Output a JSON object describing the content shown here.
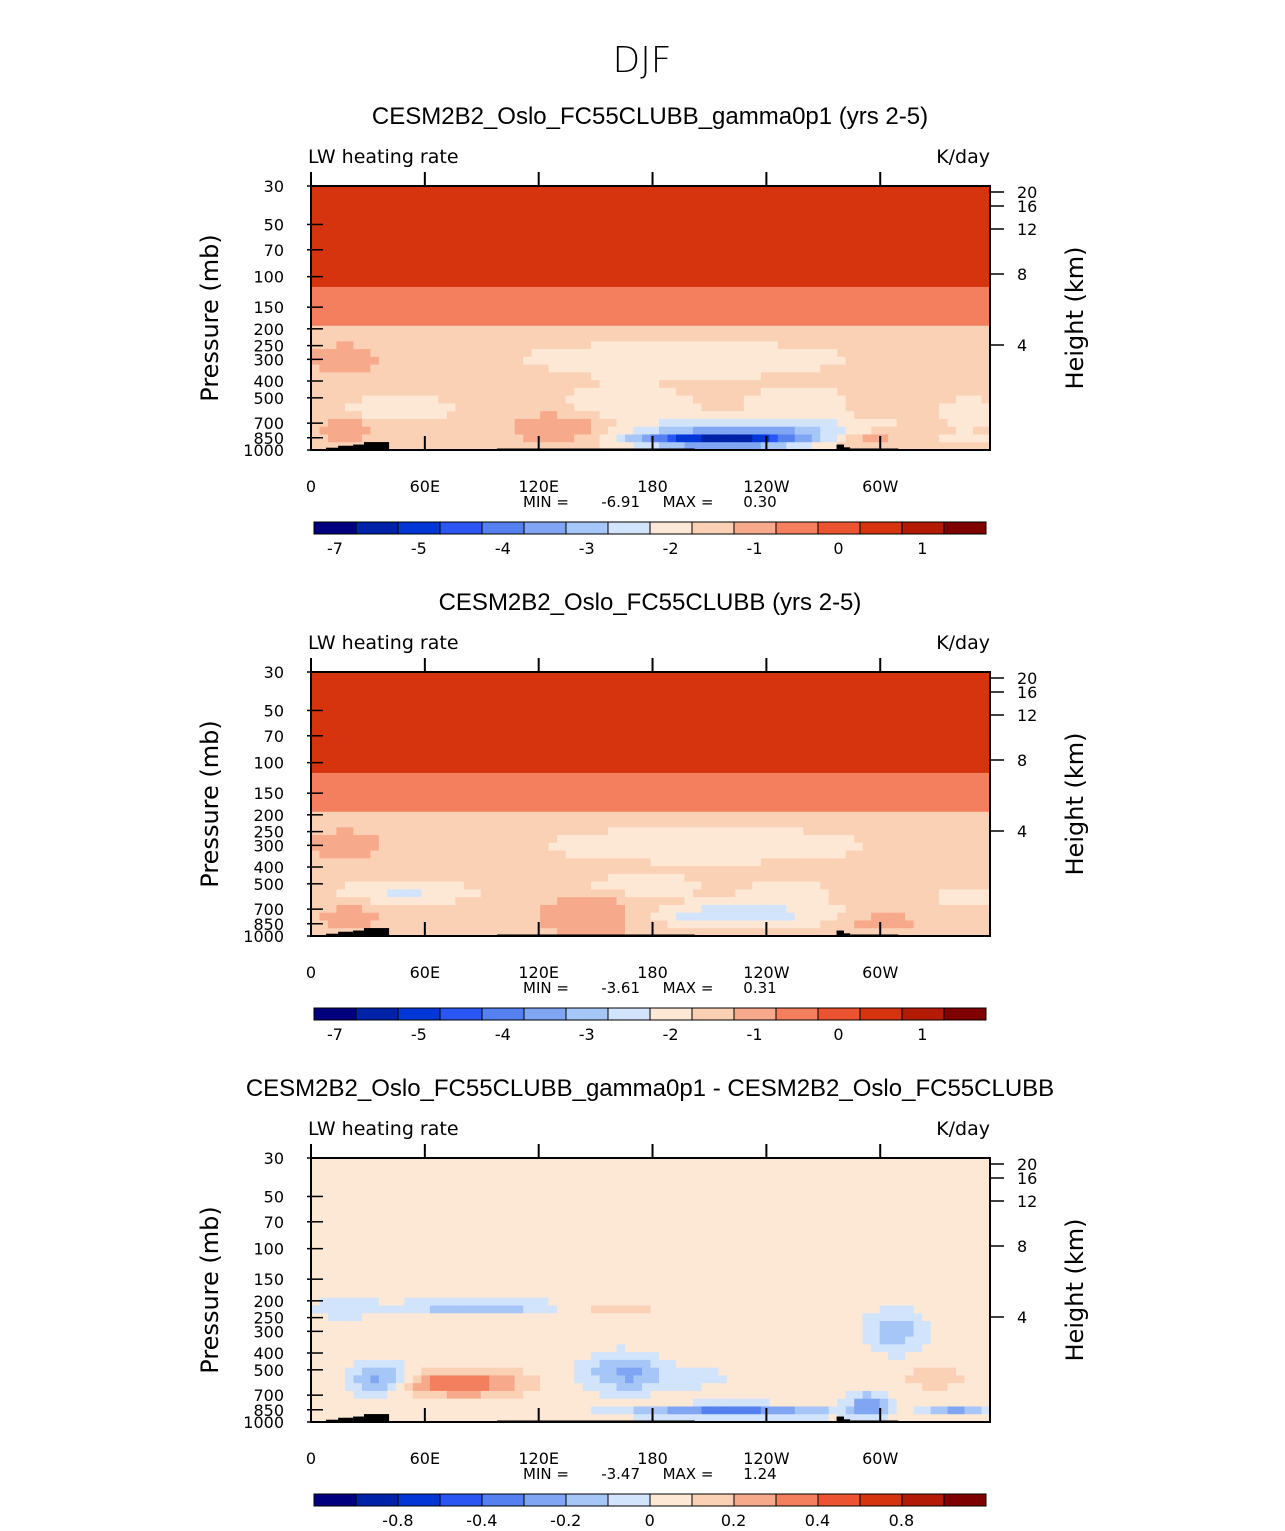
{
  "figure": {
    "title": "DJF"
  },
  "chart_data": [
    {
      "type": "heatmap",
      "title": "CESM2B2_Oslo_FC55CLUBB_gamma0p1 (yrs 2-5)",
      "left_label": "LW heating rate",
      "right_label": "K/day",
      "xlabel": "",
      "ylabel": "Pressure (mb)",
      "y2label": "Height (km)",
      "xticks": [
        "0",
        "60E",
        "120E",
        "180",
        "120W",
        "60W"
      ],
      "yticks": [
        "30",
        "50",
        "70",
        "100",
        "150",
        "200",
        "250",
        "300",
        "400",
        "500",
        "700",
        "850",
        "1000"
      ],
      "y2ticks": [
        "20",
        "16",
        "12",
        "8",
        "4"
      ],
      "ylim": [
        1000,
        30
      ],
      "min_label": "MIN =",
      "min_value": "-6.91",
      "max_label": "MAX =",
      "max_value": "0.30",
      "value_range": [
        -6.91,
        0.3
      ],
      "colorbar_labels": [
        "-7",
        "-5",
        "-4",
        "-3",
        "-2",
        "-1",
        "0",
        "1"
      ]
    },
    {
      "type": "heatmap",
      "title": "CESM2B2_Oslo_FC55CLUBB (yrs 2-5)",
      "left_label": "LW heating rate",
      "right_label": "K/day",
      "xlabel": "",
      "ylabel": "Pressure (mb)",
      "y2label": "Height (km)",
      "xticks": [
        "0",
        "60E",
        "120E",
        "180",
        "120W",
        "60W"
      ],
      "yticks": [
        "30",
        "50",
        "70",
        "100",
        "150",
        "200",
        "250",
        "300",
        "400",
        "500",
        "700",
        "850",
        "1000"
      ],
      "y2ticks": [
        "20",
        "16",
        "12",
        "8",
        "4"
      ],
      "ylim": [
        1000,
        30
      ],
      "min_label": "MIN =",
      "min_value": "-3.61",
      "max_label": "MAX =",
      "max_value": "0.31",
      "value_range": [
        -3.61,
        0.31
      ],
      "colorbar_labels": [
        "-7",
        "-5",
        "-4",
        "-3",
        "-2",
        "-1",
        "0",
        "1"
      ]
    },
    {
      "type": "heatmap",
      "title": "CESM2B2_Oslo_FC55CLUBB_gamma0p1 - CESM2B2_Oslo_FC55CLUBB",
      "left_label": "LW heating rate",
      "right_label": "K/day",
      "xlabel": "",
      "ylabel": "Pressure (mb)",
      "y2label": "Height (km)",
      "xticks": [
        "0",
        "60E",
        "120E",
        "180",
        "120W",
        "60W"
      ],
      "yticks": [
        "30",
        "50",
        "70",
        "100",
        "150",
        "200",
        "250",
        "300",
        "400",
        "500",
        "700",
        "850",
        "1000"
      ],
      "y2ticks": [
        "20",
        "16",
        "12",
        "8",
        "4"
      ],
      "ylim": [
        1000,
        30
      ],
      "min_label": "MIN =",
      "min_value": "-3.47",
      "max_label": "MAX =",
      "max_value": "1.24",
      "value_range": [
        -3.47,
        1.24
      ],
      "colorbar_labels": [
        "-0.8",
        "-0.4",
        "-0.2",
        "0",
        "0.2",
        "0.4",
        "0.8"
      ]
    }
  ],
  "colors": {
    "colorbar": [
      "#00007f",
      "#0022a8",
      "#0037d6",
      "#2a57f4",
      "#5581f0",
      "#80a6f3",
      "#a7c6f8",
      "#d1e4fb",
      "#fde8d6",
      "#fbd1b6",
      "#f7a98b",
      "#f47f5e",
      "#ec5331",
      "#d6330f",
      "#b31b07",
      "#7f0000"
    ],
    "topography": "#000000"
  }
}
